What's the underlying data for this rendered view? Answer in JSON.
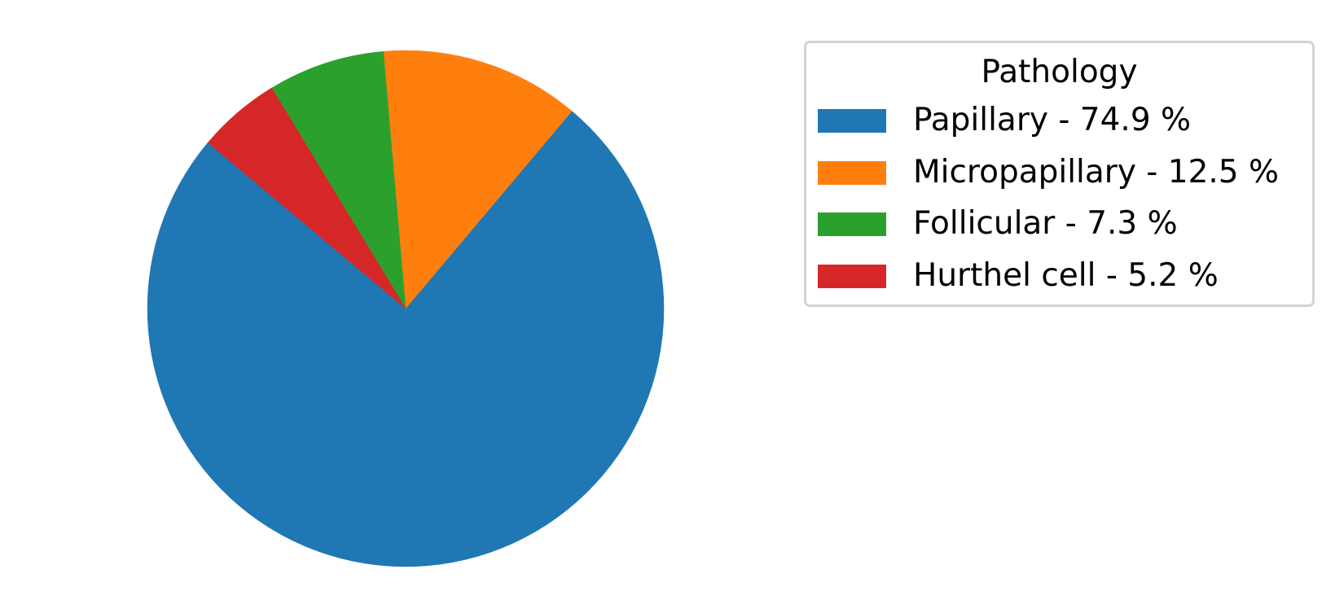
{
  "chart_data": {
    "type": "pie",
    "title": "",
    "start_angle_deg": 140,
    "direction": "counterclockwise",
    "slices": [
      {
        "label": "Papillary",
        "value": 74.9,
        "color": "#1f77b4"
      },
      {
        "label": "Micropapillary",
        "value": 12.5,
        "color": "#ff7f0e"
      },
      {
        "label": "Follicular",
        "value": 7.3,
        "color": "#2ca02c"
      },
      {
        "label": "Hurthel cell",
        "value": 5.2,
        "color": "#d62728"
      }
    ],
    "legend": {
      "title": "Pathology",
      "placement": "right",
      "entries": [
        "Papillary - 74.9 %",
        "Micropapillary - 12.5 %",
        "Follicular - 7.3 %",
        "Hurthel cell - 5.2 %"
      ]
    }
  }
}
